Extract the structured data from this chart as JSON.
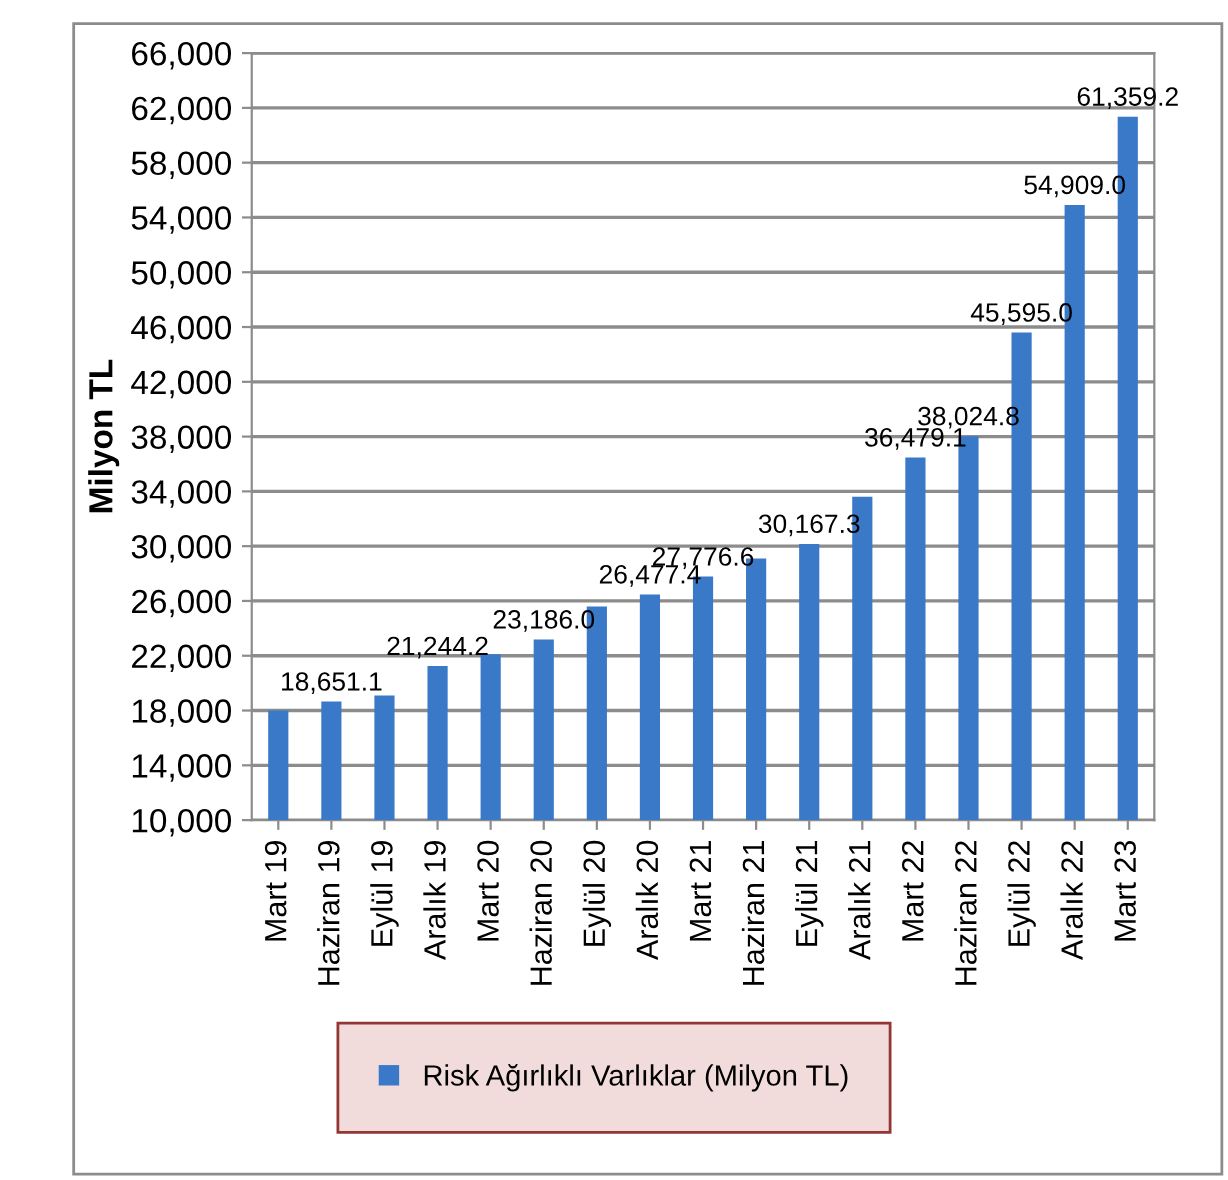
{
  "chart_data": {
    "type": "bar",
    "ylabel": "Milyon TL",
    "categories": [
      "Mart 19",
      "Haziran 19",
      "Eylül 19",
      "Aralık 19",
      "Mart 20",
      "Haziran 20",
      "Eylül 20",
      "Aralık 20",
      "Mart 21",
      "Haziran 21",
      "Eylül 21",
      "Aralık 21",
      "Mart 22",
      "Haziran 22",
      "Eylül 22",
      "Aralık 22",
      "Mart 23"
    ],
    "series": [
      {
        "name": "Risk Ağırlıklı Varlıklar (Milyon TL)",
        "color": "#3a78c8",
        "values": [
          18000,
          18651.1,
          19100,
          21244.2,
          22100,
          23186.0,
          25600,
          26477.4,
          27776.6,
          29100,
          30167.3,
          33600,
          36479.1,
          38024.8,
          45595.0,
          54909.0,
          61359.2
        ],
        "value_labels": [
          null,
          "18,651.1",
          null,
          "21,244.2",
          null,
          "23,186.0",
          null,
          "26,477.4",
          "27,776.6",
          null,
          "30,167.3",
          null,
          "36,479.1",
          "38,024.8",
          "45,595.0",
          "54,909.0",
          "61,359.2"
        ]
      }
    ],
    "ylim": [
      10000,
      66000
    ],
    "yticks": [
      {
        "value": 10000,
        "label": "10,000"
      },
      {
        "value": 14000,
        "label": "14,000"
      },
      {
        "value": 18000,
        "label": "18,000"
      },
      {
        "value": 22000,
        "label": "22,000"
      },
      {
        "value": 26000,
        "label": "26,000"
      },
      {
        "value": 30000,
        "label": "30,000"
      },
      {
        "value": 34000,
        "label": "34,000"
      },
      {
        "value": 38000,
        "label": "38,000"
      },
      {
        "value": 42000,
        "label": "42,000"
      },
      {
        "value": 46000,
        "label": "46,000"
      },
      {
        "value": 50000,
        "label": "50,000"
      },
      {
        "value": 54000,
        "label": "54,000"
      },
      {
        "value": 58000,
        "label": "58,000"
      },
      {
        "value": 62000,
        "label": "62,000"
      },
      {
        "value": 66000,
        "label": "66,000"
      }
    ],
    "grid": "y",
    "legend": "bottom"
  }
}
